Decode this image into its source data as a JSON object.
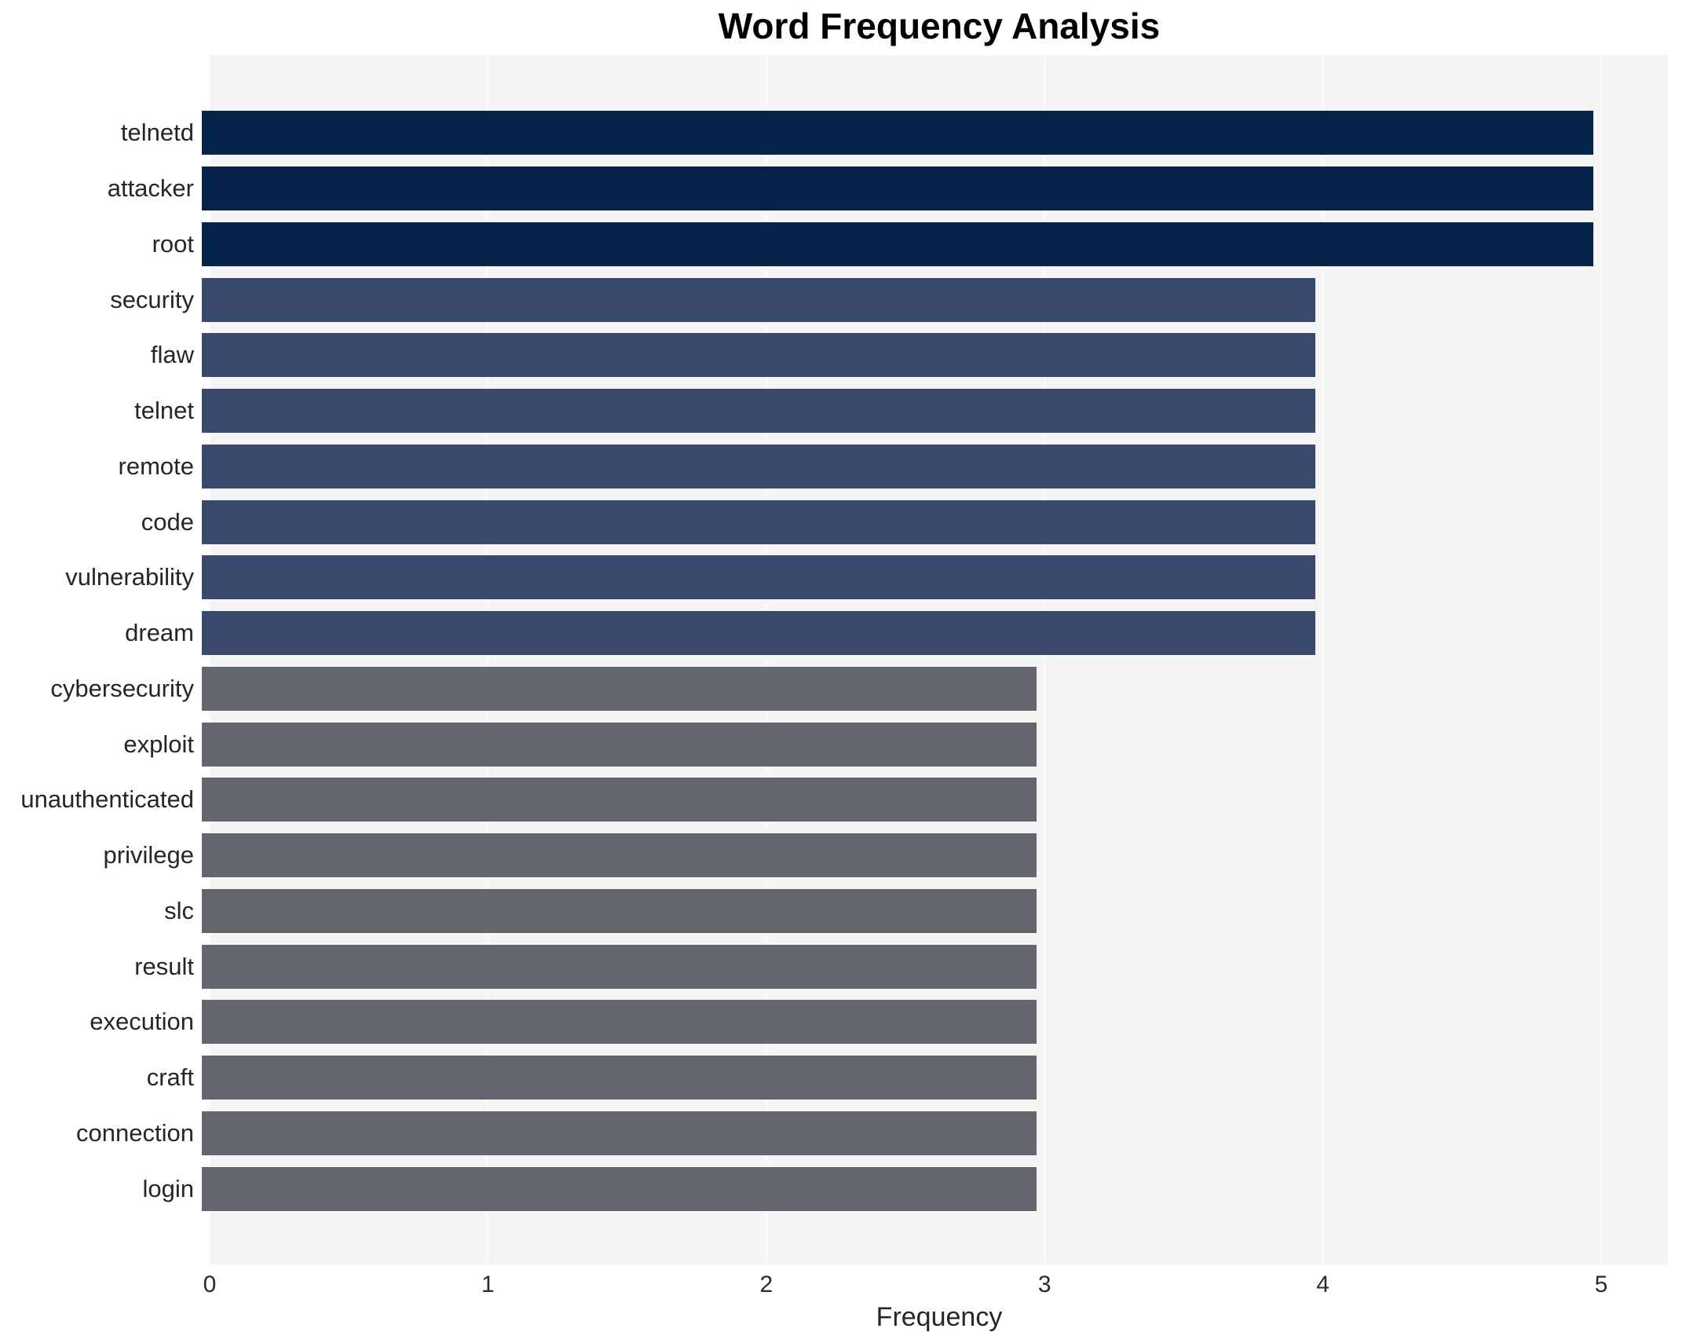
{
  "chart_data": {
    "type": "bar",
    "orientation": "horizontal",
    "title": "Word Frequency Analysis",
    "xlabel": "Frequency",
    "ylabel": "",
    "categories": [
      "telnetd",
      "attacker",
      "root",
      "security",
      "flaw",
      "telnet",
      "remote",
      "code",
      "vulnerability",
      "dream",
      "cybersecurity",
      "exploit",
      "unauthenticated",
      "privilege",
      "slc",
      "result",
      "execution",
      "craft",
      "connection",
      "login"
    ],
    "values": [
      5,
      5,
      5,
      4,
      4,
      4,
      4,
      4,
      4,
      4,
      3,
      3,
      3,
      3,
      3,
      3,
      3,
      3,
      3,
      3
    ],
    "xticks": [
      "0",
      "1",
      "2",
      "3",
      "4",
      "5"
    ],
    "xlim": [
      0,
      5.24
    ],
    "grid": true,
    "legend": false,
    "bar_colors_by_value": {
      "5": "#062349",
      "4": "#394a6d",
      "3": "#63666d"
    },
    "plot_background": "#f5f5f6",
    "gridline_color": "#fbfbfc"
  }
}
